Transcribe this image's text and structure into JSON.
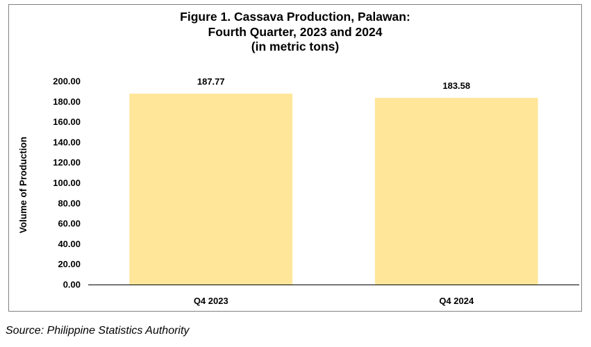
{
  "title_lines": [
    "Figure 1. Cassava Production, Palawan:",
    "Fourth Quarter, 2023 and 2024",
    "(in metric tons)"
  ],
  "source": "Source: Philippine Statistics Authority",
  "colors": {
    "bar": "#FFE699",
    "axis": "#000000",
    "frame": "#808080"
  },
  "chart_data": {
    "type": "bar",
    "title": "Figure 1. Cassava Production, Palawan: Fourth Quarter, 2023 and 2024 (in metric tons)",
    "categories": [
      "Q4 2023",
      "Q4 2024"
    ],
    "values": [
      187.77,
      183.58
    ],
    "data_labels": [
      "187.77",
      "183.58"
    ],
    "ylabel": "Volume of Production",
    "xlabel": "",
    "ylim": [
      0,
      200
    ],
    "yticks": [
      "0.00",
      "20.00",
      "40.00",
      "60.00",
      "80.00",
      "100.00",
      "120.00",
      "140.00",
      "160.00",
      "180.00",
      "200.00"
    ],
    "grid": false,
    "legend": "none"
  }
}
